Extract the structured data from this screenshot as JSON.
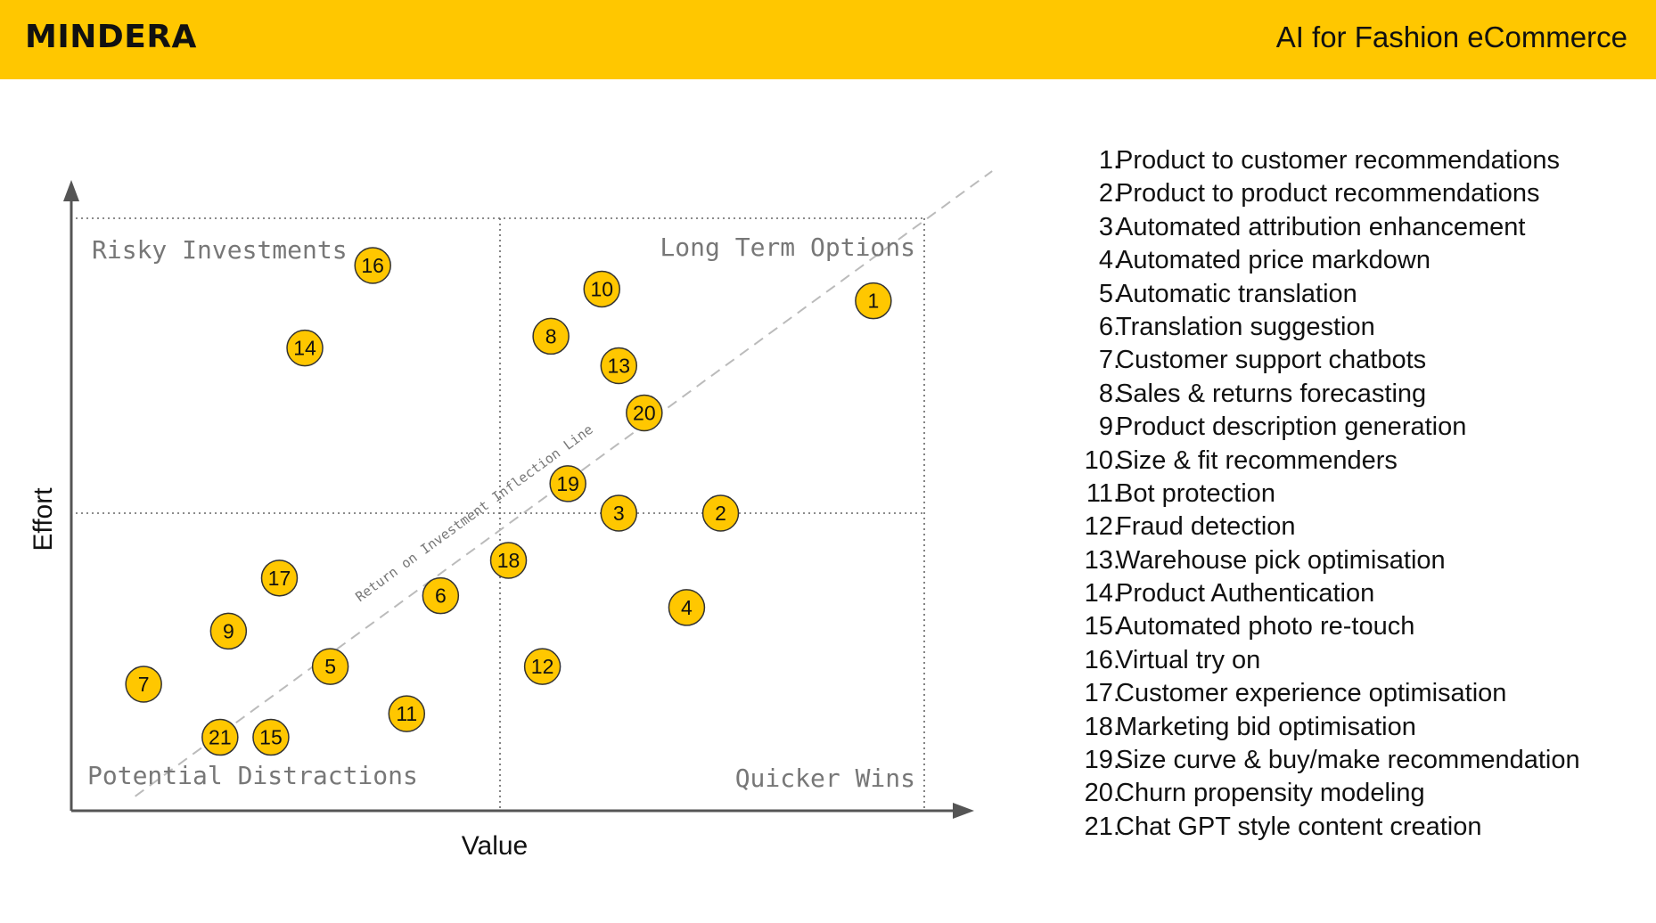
{
  "header": {
    "brand": "MINDERA",
    "title": "AI for Fashion eCommerce",
    "background": "#FFC700"
  },
  "chart_data": {
    "type": "scatter",
    "xlabel": "Value",
    "ylabel": "Effort",
    "xlim": [
      0,
      100
    ],
    "ylim": [
      0,
      100
    ],
    "quadrant_split": {
      "x": 50,
      "y": 50
    },
    "grid": "dotted quadrant dividers",
    "quadrant_labels": {
      "top_left": "Risky Investments",
      "top_right": "Long Term Options",
      "bottom_left": "Potential Distractions",
      "bottom_right": "Quicker Wins"
    },
    "reference_line": {
      "label": "Return on Investment Inflection Line",
      "style": "dashed",
      "from": [
        7,
        2
      ],
      "to": [
        108,
        108
      ]
    },
    "marker_color": "#FFC700",
    "points": [
      {
        "id": "1",
        "x": 94,
        "y": 86
      },
      {
        "id": "2",
        "x": 76,
        "y": 50
      },
      {
        "id": "3",
        "x": 64,
        "y": 50
      },
      {
        "id": "4",
        "x": 72,
        "y": 34
      },
      {
        "id": "5",
        "x": 30,
        "y": 24
      },
      {
        "id": "6",
        "x": 43,
        "y": 36
      },
      {
        "id": "7",
        "x": 8,
        "y": 21
      },
      {
        "id": "8",
        "x": 56,
        "y": 80
      },
      {
        "id": "9",
        "x": 18,
        "y": 30
      },
      {
        "id": "10",
        "x": 62,
        "y": 88
      },
      {
        "id": "11",
        "x": 39,
        "y": 16
      },
      {
        "id": "12",
        "x": 55,
        "y": 24
      },
      {
        "id": "13",
        "x": 64,
        "y": 75
      },
      {
        "id": "14",
        "x": 27,
        "y": 78
      },
      {
        "id": "15",
        "x": 23,
        "y": 12
      },
      {
        "id": "16",
        "x": 35,
        "y": 92
      },
      {
        "id": "17",
        "x": 24,
        "y": 39
      },
      {
        "id": "18",
        "x": 51,
        "y": 42
      },
      {
        "id": "19",
        "x": 58,
        "y": 55
      },
      {
        "id": "20",
        "x": 67,
        "y": 67
      },
      {
        "id": "21",
        "x": 17,
        "y": 12
      }
    ]
  },
  "legend": [
    {
      "num": "1.",
      "label": "Product to customer recommendations"
    },
    {
      "num": "2.",
      "label": "Product to product recommendations"
    },
    {
      "num": "3.",
      "label": "Automated attribution enhancement"
    },
    {
      "num": "4.",
      "label": "Automated price markdown"
    },
    {
      "num": "5.",
      "label": "Automatic translation"
    },
    {
      "num": "6.",
      "label": "Translation suggestion"
    },
    {
      "num": "7.",
      "label": "Customer support chatbots"
    },
    {
      "num": "8.",
      "label": "Sales & returns forecasting"
    },
    {
      "num": "9.",
      "label": "Product description generation"
    },
    {
      "num": "10.",
      "label": "Size & fit recommenders"
    },
    {
      "num": "11.",
      "label": "Bot protection"
    },
    {
      "num": "12.",
      "label": "Fraud detection"
    },
    {
      "num": "13.",
      "label": "Warehouse pick optimisation"
    },
    {
      "num": "14.",
      "label": "Product Authentication"
    },
    {
      "num": "15.",
      "label": "Automated photo re-touch"
    },
    {
      "num": "16.",
      "label": "Virtual try on"
    },
    {
      "num": "17.",
      "label": "Customer experience optimisation"
    },
    {
      "num": "18.",
      "label": "Marketing bid optimisation"
    },
    {
      "num": "19.",
      "label": "Size curve & buy/make recommendation"
    },
    {
      "num": "20.",
      "label": "Churn propensity modeling"
    },
    {
      "num": "21.",
      "label": "Chat GPT style content creation"
    }
  ]
}
